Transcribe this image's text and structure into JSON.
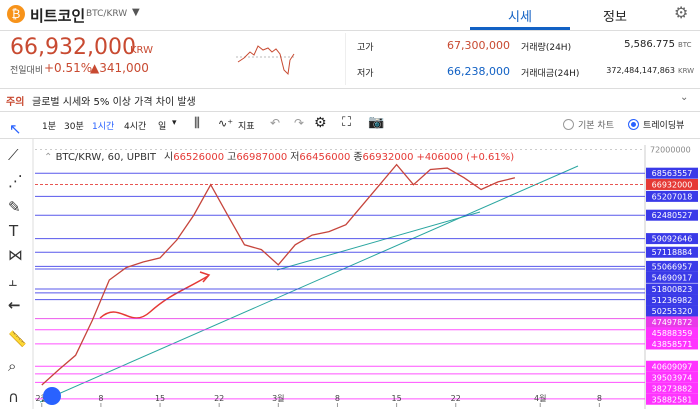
{
  "header": {
    "coin": "비트코인",
    "pair": "BTC/KRW",
    "tabs": [
      "시세",
      "정보"
    ]
  },
  "ticker": {
    "price": "66,932,000",
    "unit": "KRW",
    "change_label": "전일대비",
    "change_pct": "+0.51%",
    "change_amt": "▲341,000"
  },
  "stats": [
    {
      "label": "고가",
      "value": "67,300,000"
    },
    {
      "label": "저가",
      "value": "66,238,000"
    },
    {
      "label": "거래량(24H)",
      "value": "5,586.775",
      "unit": "BTC"
    },
    {
      "label": "거래대금(24H)",
      "value": "372,484,147,863",
      "unit": "KRW"
    }
  ],
  "notice": {
    "tag": "주의",
    "text": "글로벌 시세와 5% 이상 가격 차이 발생"
  },
  "toolbar": {
    "intervals": [
      "1분",
      "30분",
      "1시간",
      "4시간",
      "일"
    ],
    "indicator": "지표",
    "views": [
      "기본 차트",
      "트레이딩뷰"
    ]
  },
  "chart_data": {
    "type": "line",
    "title": "BTC/KRW, 60, UPBIT",
    "ohlc": [
      {
        "label": "시",
        "value": "66526000"
      },
      {
        "label": "고",
        "value": "66987000"
      },
      {
        "label": "저",
        "value": "66456000"
      },
      {
        "label": "종",
        "value": "66932000"
      }
    ],
    "change": "+406000 (+0.61%)",
    "x": [
      0,
      2,
      4,
      6,
      8,
      10,
      12,
      14,
      16,
      18,
      20,
      22,
      24,
      26,
      28,
      30,
      32,
      34,
      36,
      38,
      40,
      42,
      44,
      46,
      48,
      50,
      52,
      54,
      56
    ],
    "values": [
      37900000,
      40100000,
      42200000,
      47300000,
      53100000,
      54900000,
      55700000,
      56300000,
      58900000,
      62500000,
      66900000,
      62500000,
      58200000,
      57500000,
      55300000,
      58200000,
      59600000,
      60100000,
      61100000,
      64000000,
      66900000,
      69800000,
      66900000,
      69100000,
      69300000,
      67900000,
      66200000,
      67300000,
      67900000
    ],
    "color": "#c6453c",
    "xlim": [
      -0.8,
      71.4
    ],
    "xticks": [
      {
        "value": 0,
        "label": "2월"
      },
      {
        "value": 7,
        "label": "8"
      },
      {
        "value": 14,
        "label": "15"
      },
      {
        "value": 21,
        "label": "22"
      },
      {
        "value": 28,
        "label": "3월"
      },
      {
        "value": 35,
        "label": "8"
      },
      {
        "value": 42,
        "label": "15"
      },
      {
        "value": 49,
        "label": "22"
      },
      {
        "value": 59,
        "label": "4월"
      },
      {
        "value": 66,
        "label": "8"
      }
    ],
    "ylim": [
      35000000,
      72500000
    ],
    "yticks": [
      72000000
    ],
    "levels": [
      {
        "value": 68563557,
        "color": "#3a3ae8"
      },
      {
        "value": 66932000,
        "color": "#e53935"
      },
      {
        "value": 65207018,
        "color": "#3a3ae8"
      },
      {
        "value": 62480527,
        "color": "#3a3ae8"
      },
      {
        "value": 59092646,
        "color": "#3a3ae8"
      },
      {
        "value": 57118884,
        "color": "#3a3ae8"
      },
      {
        "value": 55066957,
        "color": "#3a3ae8"
      },
      {
        "value": 54690917,
        "color": "#3a3ae8"
      },
      {
        "value": 51800823,
        "color": "#3a3ae8"
      },
      {
        "value": 51236982,
        "color": "#3a3ae8"
      },
      {
        "value": 50255320,
        "color": "#3a3ae8"
      },
      {
        "value": 47497872,
        "color": "#e83ae8"
      },
      {
        "value": 45888359,
        "color": "#ff33ff"
      },
      {
        "value": 43858571,
        "color": "#ff33ff"
      },
      {
        "value": 40609097,
        "color": "#ff33ff"
      },
      {
        "value": 39503974,
        "color": "#ff33ff"
      },
      {
        "value": 38273882,
        "color": "#ff33ff"
      },
      {
        "value": 35882581,
        "color": "#ff33ff"
      }
    ]
  }
}
